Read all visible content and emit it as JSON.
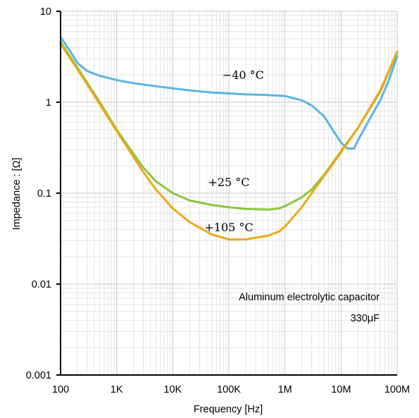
{
  "chart_data": {
    "type": "line",
    "xlabel": "Frequency [Hz]",
    "ylabel": "Impedance : [Ω]",
    "x_scale": "log",
    "y_scale": "log",
    "xlim": [
      100,
      100000000
    ],
    "ylim": [
      0.001,
      10
    ],
    "x_ticks": [
      {
        "value": 100,
        "label": "100"
      },
      {
        "value": 1000,
        "label": "1K"
      },
      {
        "value": 10000,
        "label": "10K"
      },
      {
        "value": 100000,
        "label": "100K"
      },
      {
        "value": 1000000,
        "label": "1M"
      },
      {
        "value": 10000000,
        "label": "10M"
      },
      {
        "value": 100000000,
        "label": "100M"
      }
    ],
    "y_ticks": [
      {
        "value": 0.001,
        "label": "0.001"
      },
      {
        "value": 0.01,
        "label": "0.01"
      },
      {
        "value": 0.1,
        "label": "0.1"
      },
      {
        "value": 1,
        "label": "1"
      },
      {
        "value": 10,
        "label": "10"
      }
    ],
    "grid": true,
    "annotations": [
      "Aluminum electrolytic capacitor",
      "330μF"
    ],
    "series": [
      {
        "name": "−40 °C",
        "color": "#5ab4e6",
        "label_at": {
          "x": 180000,
          "y": 1.8
        },
        "points": [
          [
            100,
            5.2
          ],
          [
            150,
            3.6
          ],
          [
            200,
            2.7
          ],
          [
            300,
            2.2
          ],
          [
            500,
            1.95
          ],
          [
            1000,
            1.75
          ],
          [
            2000,
            1.62
          ],
          [
            5000,
            1.5
          ],
          [
            10000,
            1.42
          ],
          [
            20000,
            1.35
          ],
          [
            50000,
            1.28
          ],
          [
            100000,
            1.25
          ],
          [
            200000,
            1.22
          ],
          [
            500000,
            1.2
          ],
          [
            1000000,
            1.17
          ],
          [
            2000000,
            1.05
          ],
          [
            3000000,
            0.92
          ],
          [
            5000000,
            0.7
          ],
          [
            7000000,
            0.5
          ],
          [
            10000000,
            0.36
          ],
          [
            13000000,
            0.31
          ],
          [
            17000000,
            0.31
          ],
          [
            20000000,
            0.38
          ],
          [
            30000000,
            0.6
          ],
          [
            50000000,
            1.05
          ],
          [
            70000000,
            1.7
          ],
          [
            100000000,
            3.2
          ]
        ]
      },
      {
        "name": "+25 °C",
        "color": "#8cc63f",
        "label_at": {
          "x": 100000,
          "y": 0.12
        },
        "points": [
          [
            100,
            4.6
          ],
          [
            200,
            2.4
          ],
          [
            500,
            1.0
          ],
          [
            1000,
            0.5
          ],
          [
            2000,
            0.27
          ],
          [
            3000,
            0.19
          ],
          [
            5000,
            0.135
          ],
          [
            10000,
            0.1
          ],
          [
            20000,
            0.083
          ],
          [
            50000,
            0.074
          ],
          [
            100000,
            0.07
          ],
          [
            200000,
            0.067
          ],
          [
            500000,
            0.066
          ],
          [
            800000,
            0.068
          ],
          [
            1000000,
            0.072
          ],
          [
            2000000,
            0.09
          ],
          [
            3000000,
            0.11
          ],
          [
            5000000,
            0.16
          ],
          [
            10000000,
            0.29
          ],
          [
            20000000,
            0.52
          ],
          [
            50000000,
            1.3
          ],
          [
            100000000,
            3.5
          ]
        ]
      },
      {
        "name": "+105 °C",
        "color": "#f0a818",
        "label_at": {
          "x": 100000,
          "y": 0.038
        },
        "points": [
          [
            100,
            4.4
          ],
          [
            200,
            2.3
          ],
          [
            500,
            0.95
          ],
          [
            1000,
            0.48
          ],
          [
            2000,
            0.25
          ],
          [
            3000,
            0.17
          ],
          [
            5000,
            0.11
          ],
          [
            10000,
            0.068
          ],
          [
            20000,
            0.048
          ],
          [
            50000,
            0.035
          ],
          [
            100000,
            0.031
          ],
          [
            200000,
            0.031
          ],
          [
            500000,
            0.034
          ],
          [
            800000,
            0.038
          ],
          [
            1000000,
            0.043
          ],
          [
            2000000,
            0.07
          ],
          [
            3000000,
            0.1
          ],
          [
            5000000,
            0.155
          ],
          [
            10000000,
            0.28
          ],
          [
            20000000,
            0.52
          ],
          [
            50000000,
            1.35
          ],
          [
            100000000,
            3.6
          ]
        ]
      }
    ]
  }
}
